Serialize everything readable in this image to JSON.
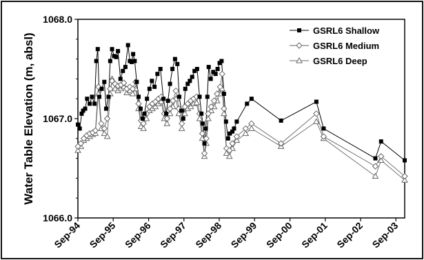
{
  "chart_data": {
    "type": "line",
    "title": "",
    "xlabel": "",
    "ylabel": "Water Table Elevation (m, absl)",
    "ylim": [
      1066.0,
      1068.0
    ],
    "xlim": [
      "1994-09-01",
      "2003-12-01"
    ],
    "y_ticks": [
      1066.0,
      1067.0,
      1068.0
    ],
    "y_tick_labels": [
      "1066.0",
      "1067.0",
      "1068.0"
    ],
    "x_ticks": [
      "1994-09-01",
      "1995-09-01",
      "1996-09-01",
      "1997-09-01",
      "1998-09-01",
      "1999-09-01",
      "2000-09-01",
      "2001-09-01",
      "2002-09-01",
      "2003-09-01"
    ],
    "x_tick_labels": [
      "Sep-94",
      "Sep-95",
      "Sep-96",
      "Sep-97",
      "Sep-98",
      "Sep-99",
      "Sep-00",
      "Sep-01",
      "Sep-02",
      "Sep-03"
    ],
    "grid": false,
    "legend_position": "top-right",
    "series": [
      {
        "name": "GSRL6 Shallow",
        "marker": "square-filled",
        "color": "#000000",
        "points": [
          [
            "1994-09-01",
            1066.94
          ],
          [
            "1994-09-20",
            1066.9
          ],
          [
            "1994-10-10",
            1067.05
          ],
          [
            "1994-10-25",
            1067.08
          ],
          [
            "1994-11-15",
            1067.1
          ],
          [
            "1994-12-05",
            1067.2
          ],
          [
            "1995-01-01",
            1067.15
          ],
          [
            "1995-01-25",
            1067.22
          ],
          [
            "1995-02-20",
            1067.15
          ],
          [
            "1995-03-10",
            1067.58
          ],
          [
            "1995-03-25",
            1067.7
          ],
          [
            "1995-04-10",
            1067.22
          ],
          [
            "1995-05-05",
            1067.3
          ],
          [
            "1995-06-01",
            1067.37
          ],
          [
            "1995-06-20",
            1067.1
          ],
          [
            "1995-07-15",
            1067.22
          ],
          [
            "1995-08-01",
            1067.58
          ],
          [
            "1995-08-20",
            1067.7
          ],
          [
            "1995-09-10",
            1067.63
          ],
          [
            "1995-10-01",
            1067.62
          ],
          [
            "1995-10-20",
            1067.68
          ],
          [
            "1995-11-15",
            1067.4
          ],
          [
            "1995-12-10",
            1067.48
          ],
          [
            "1996-01-05",
            1067.52
          ],
          [
            "1996-02-01",
            1067.74
          ],
          [
            "1996-02-20",
            1067.58
          ],
          [
            "1996-03-10",
            1067.57
          ],
          [
            "1996-03-25",
            1067.65
          ],
          [
            "1996-04-10",
            1067.58
          ],
          [
            "1996-05-01",
            1067.37
          ],
          [
            "1996-05-20",
            1067.22
          ],
          [
            "1996-06-10",
            1067.1
          ],
          [
            "1996-07-01",
            1067.0
          ],
          [
            "1996-07-20",
            1067.05
          ],
          [
            "1996-08-15",
            1067.2
          ],
          [
            "1996-09-10",
            1067.3
          ],
          [
            "1996-10-05",
            1067.38
          ],
          [
            "1996-11-01",
            1067.32
          ],
          [
            "1996-12-01",
            1067.45
          ],
          [
            "1997-01-01",
            1067.5
          ],
          [
            "1997-02-01",
            1067.2
          ],
          [
            "1997-03-01",
            1067.05
          ],
          [
            "1997-03-20",
            1067.18
          ],
          [
            "1997-04-10",
            1067.35
          ],
          [
            "1997-05-05",
            1067.5
          ],
          [
            "1997-06-01",
            1067.6
          ],
          [
            "1997-06-25",
            1067.55
          ],
          [
            "1997-07-15",
            1067.22
          ],
          [
            "1997-08-05",
            1067.08
          ],
          [
            "1997-08-25",
            1067.0
          ],
          [
            "1997-09-15",
            1067.3
          ],
          [
            "1997-10-10",
            1067.35
          ],
          [
            "1997-11-01",
            1067.38
          ],
          [
            "1997-11-25",
            1067.42
          ],
          [
            "1997-12-20",
            1067.48
          ],
          [
            "1998-01-15",
            1067.5
          ],
          [
            "1998-02-10",
            1067.22
          ],
          [
            "1998-03-01",
            1067.05
          ],
          [
            "1998-03-15",
            1066.95
          ],
          [
            "1998-04-01",
            1066.75
          ],
          [
            "1998-04-15",
            1066.9
          ],
          [
            "1998-05-01",
            1067.22
          ],
          [
            "1998-05-15",
            1067.52
          ],
          [
            "1998-06-05",
            1067.4
          ],
          [
            "1998-07-01",
            1067.47
          ],
          [
            "1998-07-25",
            1067.45
          ],
          [
            "1998-08-15",
            1067.5
          ],
          [
            "1998-09-05",
            1067.56
          ],
          [
            "1998-09-25",
            1067.58
          ],
          [
            "1998-10-20",
            1067.25
          ],
          [
            "1998-11-10",
            1066.97
          ],
          [
            "1998-12-01",
            1066.8
          ],
          [
            "1998-12-20",
            1066.85
          ],
          [
            "1999-01-15",
            1066.87
          ],
          [
            "1999-02-01",
            1066.9
          ],
          [
            "1999-03-01",
            1066.97
          ],
          [
            "1999-06-15",
            1067.15
          ],
          [
            "1999-08-01",
            1067.2
          ],
          [
            "2000-06-01",
            1066.98
          ],
          [
            "2001-06-01",
            1067.17
          ],
          [
            "2001-08-15",
            1066.9
          ],
          [
            "2003-02-01",
            1066.6
          ],
          [
            "2003-04-01",
            1066.77
          ],
          [
            "2003-12-01",
            1066.58
          ]
        ]
      },
      {
        "name": "GSRL6 Medium",
        "marker": "diamond-open",
        "color": "#666666",
        "points": [
          [
            "1994-09-01",
            1066.72
          ],
          [
            "1994-10-01",
            1066.75
          ],
          [
            "1994-11-01",
            1066.8
          ],
          [
            "1994-12-01",
            1066.83
          ],
          [
            "1995-01-01",
            1066.85
          ],
          [
            "1995-02-01",
            1066.86
          ],
          [
            "1995-03-01",
            1066.88
          ],
          [
            "1995-04-01",
            1067.32
          ],
          [
            "1995-05-01",
            1066.95
          ],
          [
            "1995-06-01",
            1066.9
          ],
          [
            "1995-07-01",
            1067.0
          ],
          [
            "1995-08-01",
            1067.3
          ],
          [
            "1995-08-20",
            1067.38
          ],
          [
            "1995-09-20",
            1067.35
          ],
          [
            "1995-10-20",
            1067.33
          ],
          [
            "1995-11-20",
            1067.34
          ],
          [
            "1995-12-20",
            1067.36
          ],
          [
            "1996-01-20",
            1067.3
          ],
          [
            "1996-02-20",
            1067.32
          ],
          [
            "1996-03-20",
            1067.3
          ],
          [
            "1996-04-20",
            1067.37
          ],
          [
            "1996-05-20",
            1067.15
          ],
          [
            "1996-06-15",
            1066.98
          ],
          [
            "1996-07-10",
            1066.95
          ],
          [
            "1996-08-10",
            1067.05
          ],
          [
            "1996-09-10",
            1067.12
          ],
          [
            "1996-10-10",
            1067.15
          ],
          [
            "1996-11-10",
            1067.17
          ],
          [
            "1996-12-10",
            1067.2
          ],
          [
            "1997-01-10",
            1067.22
          ],
          [
            "1997-02-10",
            1067.05
          ],
          [
            "1997-03-10",
            1067.0
          ],
          [
            "1997-04-10",
            1067.1
          ],
          [
            "1997-05-10",
            1067.18
          ],
          [
            "1997-06-10",
            1067.28
          ],
          [
            "1997-07-10",
            1067.1
          ],
          [
            "1997-08-10",
            1066.95
          ],
          [
            "1997-09-10",
            1067.12
          ],
          [
            "1997-10-10",
            1067.15
          ],
          [
            "1997-11-10",
            1067.18
          ],
          [
            "1997-12-10",
            1067.2
          ],
          [
            "1998-01-10",
            1067.22
          ],
          [
            "1998-02-10",
            1067.05
          ],
          [
            "1998-03-10",
            1066.85
          ],
          [
            "1998-04-01",
            1066.65
          ],
          [
            "1998-04-20",
            1066.8
          ],
          [
            "1998-05-10",
            1067.05
          ],
          [
            "1998-06-10",
            1067.12
          ],
          [
            "1998-07-10",
            1067.18
          ],
          [
            "1998-08-10",
            1067.25
          ],
          [
            "1998-09-10",
            1067.32
          ],
          [
            "1998-10-01",
            1067.45
          ],
          [
            "1998-10-20",
            1067.1
          ],
          [
            "1998-11-15",
            1066.7
          ],
          [
            "1998-12-15",
            1066.68
          ],
          [
            "1999-01-15",
            1066.75
          ],
          [
            "1999-03-01",
            1066.82
          ],
          [
            "1999-06-01",
            1066.9
          ],
          [
            "1999-08-01",
            1066.95
          ],
          [
            "2000-06-01",
            1066.75
          ],
          [
            "2001-06-01",
            1067.05
          ],
          [
            "2001-08-15",
            1066.82
          ],
          [
            "2003-02-01",
            1066.52
          ],
          [
            "2003-04-01",
            1066.62
          ],
          [
            "2003-12-01",
            1066.42
          ]
        ]
      },
      {
        "name": "GSRL6 Deep",
        "marker": "triangle-open",
        "color": "#666666",
        "points": [
          [
            "1994-09-01",
            1066.68
          ],
          [
            "1994-10-01",
            1066.72
          ],
          [
            "1994-11-01",
            1066.78
          ],
          [
            "1994-12-01",
            1066.8
          ],
          [
            "1995-01-01",
            1066.82
          ],
          [
            "1995-02-01",
            1066.84
          ],
          [
            "1995-03-01",
            1066.85
          ],
          [
            "1995-04-01",
            1067.25
          ],
          [
            "1995-05-01",
            1066.9
          ],
          [
            "1995-06-01",
            1066.85
          ],
          [
            "1995-07-01",
            1066.82
          ],
          [
            "1995-08-01",
            1067.25
          ],
          [
            "1995-08-20",
            1067.4
          ],
          [
            "1995-09-20",
            1067.3
          ],
          [
            "1995-10-20",
            1067.28
          ],
          [
            "1995-11-20",
            1067.3
          ],
          [
            "1995-12-20",
            1067.32
          ],
          [
            "1996-01-20",
            1067.26
          ],
          [
            "1996-02-20",
            1067.28
          ],
          [
            "1996-03-20",
            1067.25
          ],
          [
            "1996-04-20",
            1067.3
          ],
          [
            "1996-05-20",
            1067.1
          ],
          [
            "1996-06-15",
            1066.92
          ],
          [
            "1996-07-10",
            1066.9
          ],
          [
            "1996-08-10",
            1067.0
          ],
          [
            "1996-09-10",
            1067.08
          ],
          [
            "1996-10-10",
            1067.1
          ],
          [
            "1996-11-10",
            1067.12
          ],
          [
            "1996-12-10",
            1067.15
          ],
          [
            "1997-01-10",
            1067.17
          ],
          [
            "1997-02-10",
            1067.0
          ],
          [
            "1997-03-10",
            1066.95
          ],
          [
            "1997-04-10",
            1067.05
          ],
          [
            "1997-05-10",
            1067.12
          ],
          [
            "1997-06-10",
            1067.2
          ],
          [
            "1997-07-10",
            1067.05
          ],
          [
            "1997-08-10",
            1066.9
          ],
          [
            "1997-09-10",
            1067.05
          ],
          [
            "1997-10-10",
            1067.1
          ],
          [
            "1997-11-10",
            1067.12
          ],
          [
            "1997-12-10",
            1067.15
          ],
          [
            "1998-01-10",
            1067.16
          ],
          [
            "1998-02-10",
            1067.0
          ],
          [
            "1998-03-10",
            1066.8
          ],
          [
            "1998-04-01",
            1066.62
          ],
          [
            "1998-04-20",
            1066.75
          ],
          [
            "1998-05-10",
            1067.0
          ],
          [
            "1998-06-10",
            1067.08
          ],
          [
            "1998-07-10",
            1067.12
          ],
          [
            "1998-08-10",
            1067.18
          ],
          [
            "1998-09-10",
            1067.25
          ],
          [
            "1998-10-01",
            1067.3
          ],
          [
            "1998-10-20",
            1067.05
          ],
          [
            "1998-11-15",
            1066.65
          ],
          [
            "1998-12-15",
            1066.62
          ],
          [
            "1999-01-15",
            1066.7
          ],
          [
            "1999-03-01",
            1066.78
          ],
          [
            "1999-06-01",
            1066.85
          ],
          [
            "1999-08-01",
            1066.9
          ],
          [
            "2000-06-01",
            1066.72
          ],
          [
            "2001-06-01",
            1066.97
          ],
          [
            "2001-08-15",
            1066.8
          ],
          [
            "2003-02-01",
            1066.42
          ],
          [
            "2003-04-01",
            1066.58
          ],
          [
            "2003-12-01",
            1066.38
          ]
        ]
      }
    ]
  }
}
